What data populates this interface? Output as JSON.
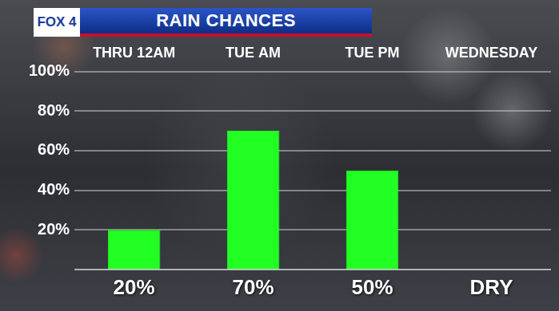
{
  "chart_data": {
    "type": "bar",
    "logo": "FOX 4",
    "title": "RAIN CHANCES",
    "categories": [
      "THRU 12AM",
      "TUE AM",
      "TUE PM",
      "WEDNESDAY"
    ],
    "values": [
      20,
      70,
      50,
      null
    ],
    "value_labels": [
      "20%",
      "70%",
      "50%",
      "DRY"
    ],
    "color": "#22ff22",
    "ylim": [
      0,
      100
    ],
    "yticks": [
      {
        "value": 20,
        "label": "20%"
      },
      {
        "value": 40,
        "label": "40%"
      },
      {
        "value": 60,
        "label": "60%"
      },
      {
        "value": 80,
        "label": "80%"
      },
      {
        "value": 100,
        "label": "100%"
      }
    ],
    "grid": true,
    "data_labels": true
  }
}
